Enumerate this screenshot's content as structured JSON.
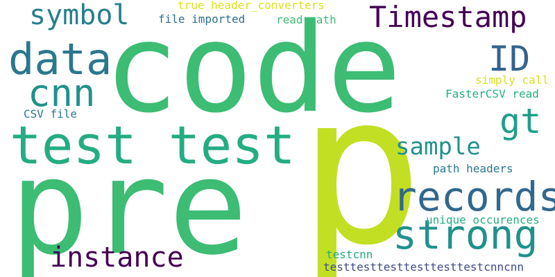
{
  "words": [
    {
      "text": "code",
      "color": "#3dbc74",
      "orientation": "horizontal"
    },
    {
      "text": "pre",
      "color": "#3dbc74",
      "orientation": "horizontal"
    },
    {
      "text": "p",
      "color": "#c2df23",
      "orientation": "horizontal"
    },
    {
      "text": "test test",
      "color": "#25ac82",
      "orientation": "horizontal"
    },
    {
      "text": "records",
      "color": "#31688e",
      "orientation": "horizontal"
    },
    {
      "text": "strong",
      "color": "#21918c",
      "orientation": "horizontal"
    },
    {
      "text": "data",
      "color": "#2a788e",
      "orientation": "horizontal"
    },
    {
      "text": "cnn",
      "color": "#21918c",
      "orientation": "horizontal"
    },
    {
      "text": "symbol",
      "color": "#277f8e",
      "orientation": "horizontal"
    },
    {
      "text": "Timestamp",
      "color": "#440154",
      "orientation": "horizontal"
    },
    {
      "text": "ID",
      "color": "#33638d",
      "orientation": "horizontal"
    },
    {
      "text": "gt",
      "color": "#1f9e89",
      "orientation": "horizontal"
    },
    {
      "text": "sample",
      "color": "#21918c",
      "orientation": "horizontal"
    },
    {
      "text": "instance",
      "color": "#440154",
      "orientation": "horizontal"
    },
    {
      "text": "true header_converters",
      "color": "#d8e219",
      "orientation": "horizontal"
    },
    {
      "text": "file imported",
      "color": "#2d708e",
      "orientation": "horizontal"
    },
    {
      "text": "read path",
      "color": "#3dbc74",
      "orientation": "horizontal"
    },
    {
      "text": "simply call",
      "color": "#d8e219",
      "orientation": "horizontal"
    },
    {
      "text": "FasterCSV read",
      "color": "#25ac82",
      "orientation": "horizontal"
    },
    {
      "text": "CSV file",
      "color": "#2a788e",
      "orientation": "horizontal"
    },
    {
      "text": "path headers",
      "color": "#2a788e",
      "orientation": "horizontal"
    },
    {
      "text": "unique occurences",
      "color": "#25ac82",
      "orientation": "horizontal"
    },
    {
      "text": "testcnn",
      "color": "#25ac82",
      "orientation": "horizontal"
    },
    {
      "text": "testtesttesttesttesttestcnncnn",
      "color": "#3e4a89",
      "orientation": "horizontal"
    }
  ]
}
